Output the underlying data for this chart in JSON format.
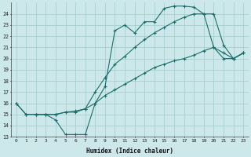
{
  "bg_color": "#cde8ea",
  "grid_color": "#a8cfd2",
  "line_color": "#1a6e6a",
  "xlabel": "Humidex (Indice chaleur)",
  "xlim": [
    -0.5,
    23.5
  ],
  "ylim": [
    13,
    25
  ],
  "yticks": [
    13,
    14,
    15,
    16,
    17,
    18,
    19,
    20,
    21,
    22,
    23,
    24
  ],
  "xticks": [
    0,
    1,
    2,
    3,
    4,
    5,
    6,
    7,
    8,
    9,
    10,
    11,
    12,
    13,
    14,
    15,
    16,
    17,
    18,
    19,
    20,
    21,
    22,
    23
  ],
  "curve1_x": [
    0,
    1,
    2,
    3,
    4,
    5,
    6,
    7,
    8,
    9,
    10,
    11,
    12,
    13,
    14,
    15,
    16,
    17,
    18,
    19,
    20,
    21,
    22,
    23
  ],
  "curve1_y": [
    16,
    15,
    15,
    15,
    14.5,
    13.2,
    13.2,
    13.2,
    16.0,
    17.5,
    22.5,
    23.0,
    22.3,
    23.3,
    23.3,
    24.5,
    24.7,
    24.7,
    24.6,
    24.0,
    21.0,
    20.0,
    20.0,
    20.5
  ],
  "curve2_x": [
    2,
    3,
    4,
    5,
    6,
    7,
    8,
    9,
    10,
    11,
    12,
    13,
    14,
    15,
    16,
    17,
    18,
    19,
    20,
    21,
    22,
    23
  ],
  "curve2_y": [
    15,
    15,
    15,
    15.2,
    15.2,
    15.5,
    17.0,
    18.3,
    19.5,
    20.2,
    21.0,
    21.7,
    22.3,
    22.8,
    23.3,
    23.7,
    24.0,
    24.0,
    24.0,
    21.2,
    20.0,
    20.5
  ],
  "curve3_x": [
    0,
    1,
    2,
    3,
    4,
    5,
    6,
    7,
    8,
    9,
    10,
    11,
    12,
    13,
    14,
    15,
    16,
    17,
    18,
    19,
    20,
    21,
    22,
    23
  ],
  "curve3_y": [
    16,
    15,
    15,
    15,
    15,
    15.2,
    15.3,
    15.5,
    16.0,
    16.7,
    17.2,
    17.7,
    18.2,
    18.7,
    19.2,
    19.5,
    19.8,
    20.0,
    20.3,
    20.7,
    21.0,
    20.5,
    20.0,
    20.5
  ]
}
